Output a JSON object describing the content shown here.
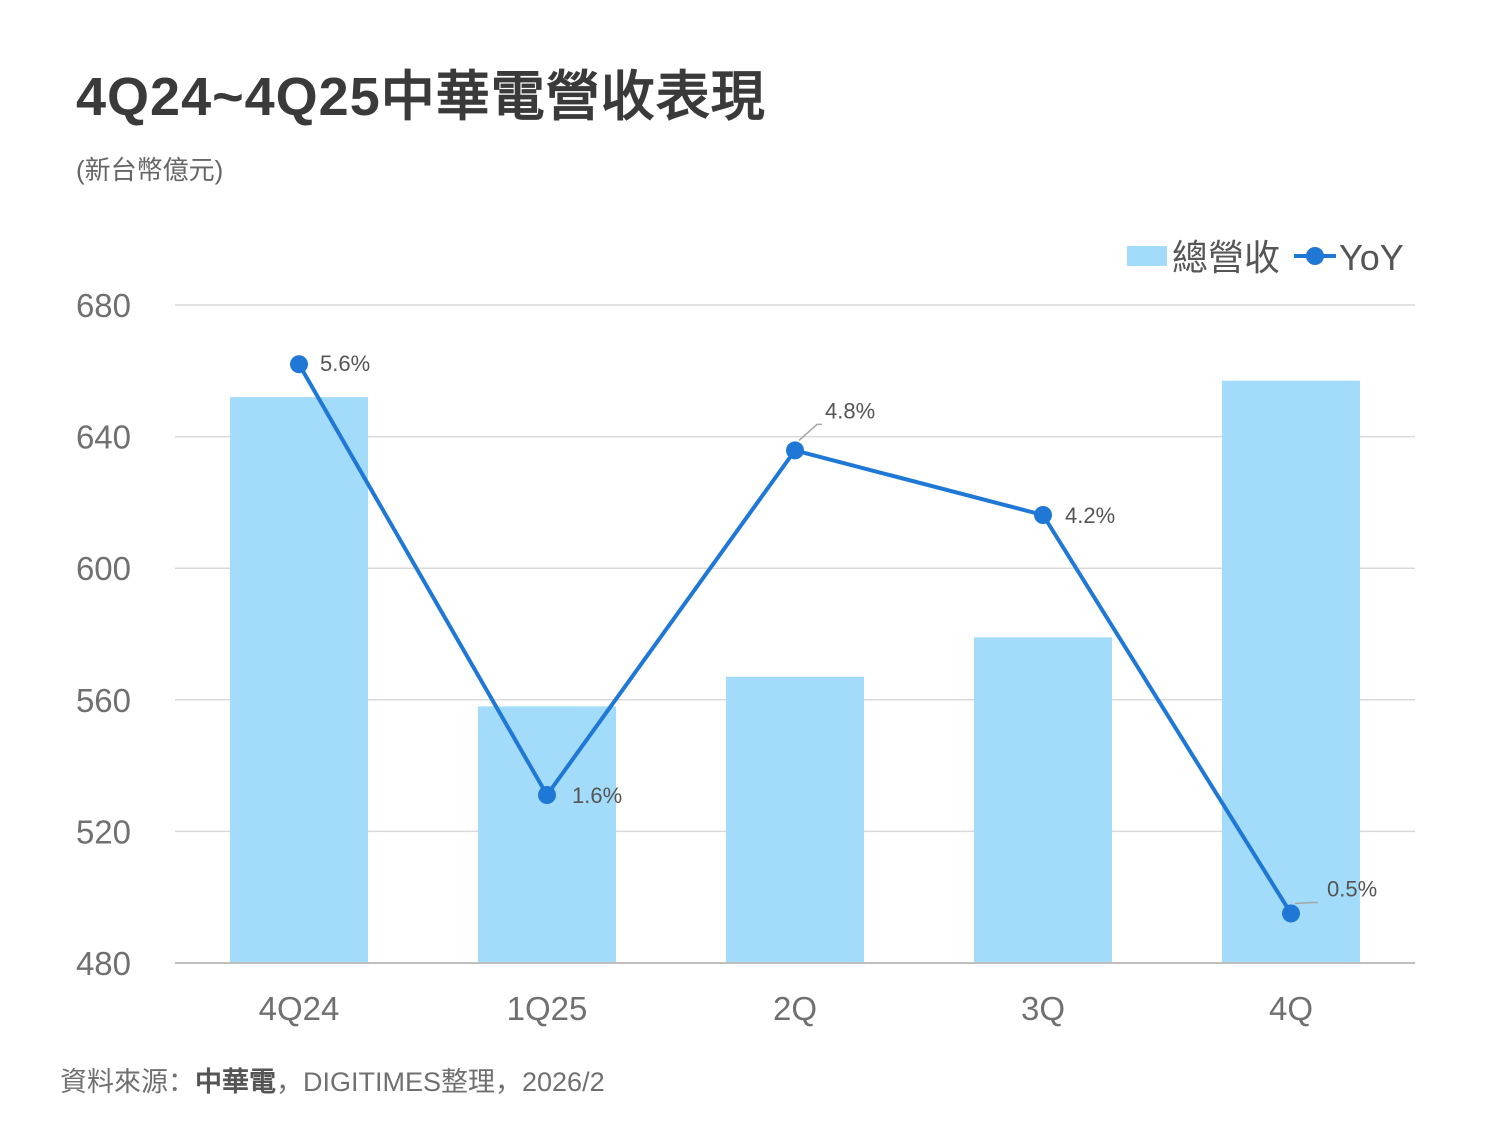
{
  "title": "4Q24~4Q25中華電營收表現",
  "unit": "(新台幣億元)",
  "source": {
    "prefix": "資料來源：",
    "company": "中華電",
    "suffix": "，DIGITIMES整理，2026/2"
  },
  "colors": {
    "bar": "#a3dbfa",
    "line": "#1f78d6",
    "grid": "#d9d9d9",
    "axis": "#bfbfbf"
  },
  "chart_data": {
    "type": "bar",
    "categories": [
      "4Q24",
      "1Q25",
      "2Q",
      "3Q",
      "4Q"
    ],
    "ylim": [
      480,
      680
    ],
    "yticks": [
      "480",
      "520",
      "560",
      "600",
      "640",
      "680"
    ],
    "grid": true,
    "legend_position": "top-right",
    "series": [
      {
        "name": "總營收",
        "type": "bar",
        "values": [
          652,
          558,
          567,
          579,
          657
        ]
      },
      {
        "name": "YoY",
        "type": "line",
        "values": [
          5.6,
          1.6,
          4.8,
          4.2,
          0.5
        ],
        "labels": [
          "5.6%",
          "1.6%",
          "4.8%",
          "4.2%",
          "0.5%"
        ]
      }
    ]
  }
}
